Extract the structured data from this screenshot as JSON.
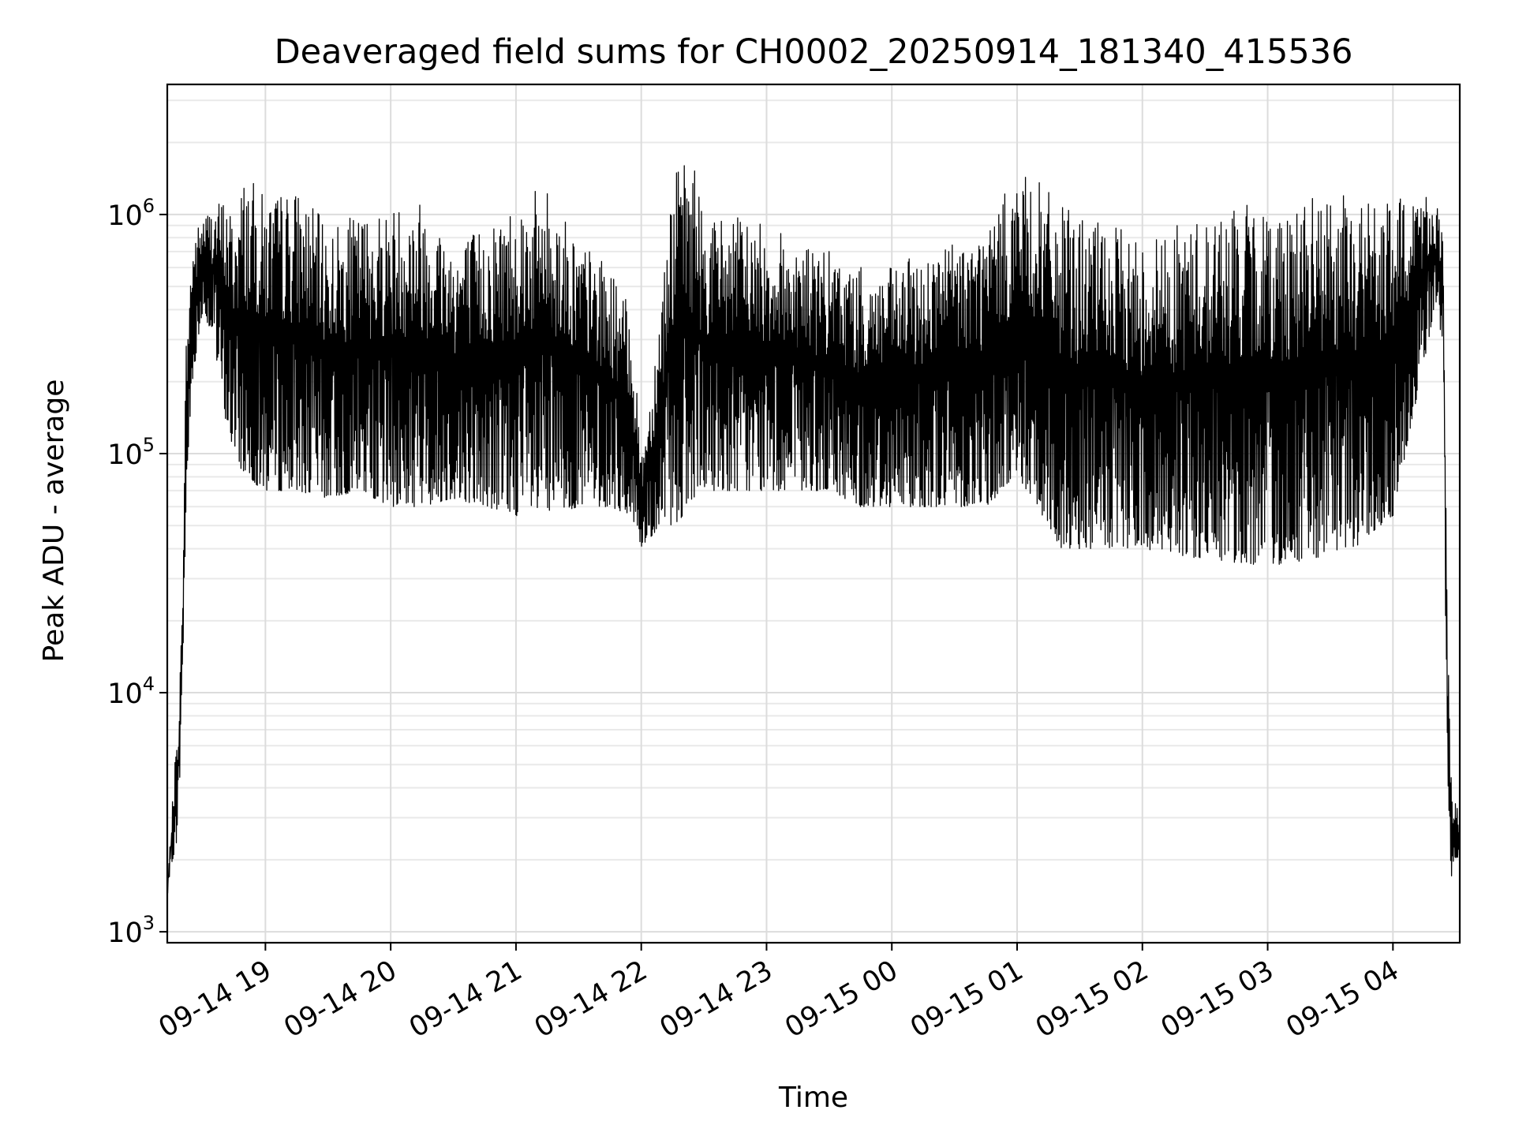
{
  "chart_data": {
    "type": "line",
    "title": "Deaveraged field sums for CH0002_20250914_181340_415536",
    "xlabel": "Time",
    "ylabel": "Peak ADU - average",
    "yscale": "log",
    "xlim": [
      "2025-09-14 18:13",
      "2025-09-15 04:32"
    ],
    "ylim": [
      900,
      3500000
    ],
    "grid": true,
    "grid_minor_y": true,
    "x_ticks": [
      {
        "t": "2025-09-14 19:00",
        "label": "09-14 19"
      },
      {
        "t": "2025-09-14 20:00",
        "label": "09-14 20"
      },
      {
        "t": "2025-09-14 21:00",
        "label": "09-14 21"
      },
      {
        "t": "2025-09-14 22:00",
        "label": "09-14 22"
      },
      {
        "t": "2025-09-14 23:00",
        "label": "09-14 23"
      },
      {
        "t": "2025-09-15 00:00",
        "label": "09-15 00"
      },
      {
        "t": "2025-09-15 01:00",
        "label": "09-15 01"
      },
      {
        "t": "2025-09-15 02:00",
        "label": "09-15 02"
      },
      {
        "t": "2025-09-15 03:00",
        "label": "09-15 03"
      },
      {
        "t": "2025-09-15 04:00",
        "label": "09-15 04"
      }
    ],
    "y_ticks": [
      {
        "v": 1000,
        "base": "10",
        "exp": "3"
      },
      {
        "v": 10000,
        "base": "10",
        "exp": "4"
      },
      {
        "v": 100000,
        "base": "10",
        "exp": "5"
      },
      {
        "v": 1000000,
        "base": "10",
        "exp": "6"
      }
    ],
    "series": [
      {
        "color": "#000000",
        "x": [
          "2025-09-14 18:13",
          "2025-09-14 18:15",
          "2025-09-14 18:18",
          "2025-09-14 18:20",
          "2025-09-14 18:22",
          "2025-09-14 18:25",
          "2025-09-14 18:30",
          "2025-09-14 18:35",
          "2025-09-14 18:40",
          "2025-09-14 18:45",
          "2025-09-14 18:50",
          "2025-09-14 19:00",
          "2025-09-14 19:15",
          "2025-09-14 19:30",
          "2025-09-14 19:45",
          "2025-09-14 20:00",
          "2025-09-14 20:15",
          "2025-09-14 20:30",
          "2025-09-14 20:45",
          "2025-09-14 21:00",
          "2025-09-14 21:15",
          "2025-09-14 21:30",
          "2025-09-14 21:45",
          "2025-09-14 21:55",
          "2025-09-14 22:00",
          "2025-09-14 22:05",
          "2025-09-14 22:15",
          "2025-09-14 22:25",
          "2025-09-14 22:30",
          "2025-09-14 22:45",
          "2025-09-14 23:00",
          "2025-09-14 23:15",
          "2025-09-14 23:30",
          "2025-09-14 23:45",
          "2025-09-15 00:00",
          "2025-09-15 00:15",
          "2025-09-15 00:30",
          "2025-09-15 00:45",
          "2025-09-15 01:00",
          "2025-09-15 01:10",
          "2025-09-15 01:20",
          "2025-09-15 01:30",
          "2025-09-15 01:45",
          "2025-09-15 02:00",
          "2025-09-15 02:15",
          "2025-09-15 02:30",
          "2025-09-15 02:45",
          "2025-09-15 03:00",
          "2025-09-15 03:15",
          "2025-09-15 03:30",
          "2025-09-15 03:45",
          "2025-09-15 04:00",
          "2025-09-15 04:10",
          "2025-09-15 04:20",
          "2025-09-15 04:24",
          "2025-09-15 04:26",
          "2025-09-15 04:28",
          "2025-09-15 04:30",
          "2025-09-15 04:32"
        ],
        "upper": [
          1500,
          3000,
          8000,
          20000,
          300000,
          800000,
          1000000,
          1100000,
          1200000,
          1000000,
          1500000,
          1200000,
          1300000,
          900000,
          1000000,
          1100000,
          1200000,
          800000,
          900000,
          1200000,
          1300000,
          800000,
          600000,
          400000,
          100000,
          200000,
          1500000,
          1800000,
          1000000,
          1000000,
          900000,
          800000,
          700000,
          600000,
          600000,
          700000,
          800000,
          900000,
          1500000,
          1400000,
          1100000,
          1000000,
          900000,
          800000,
          900000,
          1000000,
          1100000,
          1100000,
          1200000,
          1200000,
          1200000,
          1100000,
          1300000,
          1200000,
          900000,
          20000,
          4000,
          3500,
          3000
        ],
        "lower": [
          1400,
          1900,
          2500,
          8000,
          60000,
          200000,
          400000,
          300000,
          150000,
          100000,
          80000,
          70000,
          70000,
          65000,
          70000,
          60000,
          60000,
          65000,
          60000,
          55000,
          55000,
          60000,
          60000,
          55000,
          40000,
          45000,
          50000,
          60000,
          70000,
          70000,
          70000,
          70000,
          70000,
          60000,
          60000,
          60000,
          60000,
          60000,
          80000,
          60000,
          40000,
          40000,
          40000,
          40000,
          38000,
          36000,
          35000,
          34000,
          35000,
          38000,
          42000,
          55000,
          150000,
          400000,
          300000,
          3000,
          1700,
          2000,
          2100
        ]
      }
    ]
  }
}
